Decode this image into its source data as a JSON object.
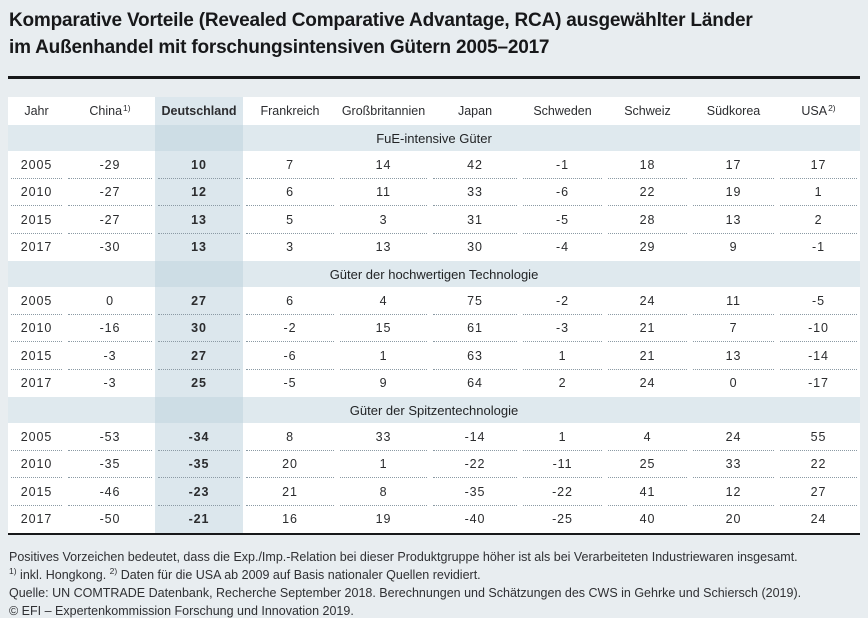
{
  "title": {
    "line1": "Komparative Vorteile (Revealed Comparative Advantage, RCA) ausgewählter Länder",
    "line2": "im Außenhandel mit forschungsintensiven Gütern 2005–2017"
  },
  "colors": {
    "page_bg": "#e8edf0",
    "section_band": "#dfe9ee",
    "deutschland_column": "#dce7ed",
    "deutschland_on_band": "#cddde5",
    "rule": "#17181a"
  },
  "table": {
    "columns": [
      {
        "key": "jahr",
        "label": "Jahr",
        "sup": ""
      },
      {
        "key": "china",
        "label": "China",
        "sup": "1)"
      },
      {
        "key": "deutschland",
        "label": "Deutschland",
        "sup": ""
      },
      {
        "key": "frankreich",
        "label": "Frankreich",
        "sup": ""
      },
      {
        "key": "grossbritannien",
        "label": "Großbritannien",
        "sup": ""
      },
      {
        "key": "japan",
        "label": "Japan",
        "sup": ""
      },
      {
        "key": "schweden",
        "label": "Schweden",
        "sup": ""
      },
      {
        "key": "schweiz",
        "label": "Schweiz",
        "sup": ""
      },
      {
        "key": "suedkorea",
        "label": "Südkorea",
        "sup": ""
      },
      {
        "key": "usa",
        "label": "USA",
        "sup": "2)"
      }
    ],
    "sections": [
      {
        "label": "FuE-intensive Güter",
        "rows": [
          {
            "year": "2005",
            "values": [
              "-29",
              "10",
              "7",
              "14",
              "42",
              "-1",
              "18",
              "17",
              "17"
            ]
          },
          {
            "year": "2010",
            "values": [
              "-27",
              "12",
              "6",
              "11",
              "33",
              "-6",
              "22",
              "19",
              "1"
            ]
          },
          {
            "year": "2015",
            "values": [
              "-27",
              "13",
              "5",
              "3",
              "31",
              "-5",
              "28",
              "13",
              "2"
            ]
          },
          {
            "year": "2017",
            "values": [
              "-30",
              "13",
              "3",
              "13",
              "30",
              "-4",
              "29",
              "9",
              "-1"
            ]
          }
        ]
      },
      {
        "label": "Güter der hochwertigen Technologie",
        "rows": [
          {
            "year": "2005",
            "values": [
              "0",
              "27",
              "6",
              "4",
              "75",
              "-2",
              "24",
              "11",
              "-5"
            ]
          },
          {
            "year": "2010",
            "values": [
              "-16",
              "30",
              "-2",
              "15",
              "61",
              "-3",
              "21",
              "7",
              "-10"
            ]
          },
          {
            "year": "2015",
            "values": [
              "-3",
              "27",
              "-6",
              "1",
              "63",
              "1",
              "21",
              "13",
              "-14"
            ]
          },
          {
            "year": "2017",
            "values": [
              "-3",
              "25",
              "-5",
              "9",
              "64",
              "2",
              "24",
              "0",
              "-17"
            ]
          }
        ]
      },
      {
        "label": "Güter der Spitzentechnologie",
        "rows": [
          {
            "year": "2005",
            "values": [
              "-53",
              "-34",
              "8",
              "33",
              "-14",
              "1",
              "4",
              "24",
              "55"
            ]
          },
          {
            "year": "2010",
            "values": [
              "-35",
              "-35",
              "20",
              "1",
              "-22",
              "-11",
              "25",
              "33",
              "22"
            ]
          },
          {
            "year": "2015",
            "values": [
              "-46",
              "-23",
              "21",
              "8",
              "-35",
              "-22",
              "41",
              "12",
              "27"
            ]
          },
          {
            "year": "2017",
            "values": [
              "-50",
              "-21",
              "16",
              "19",
              "-40",
              "-25",
              "40",
              "20",
              "24"
            ]
          }
        ]
      }
    ]
  },
  "notes": {
    "line1": "Positives Vorzeichen bedeutet, dass die Exp./Imp.-Relation bei dieser Produktgruppe höher ist als bei Verarbeiteten Industriewaren insgesamt.",
    "fn1_sup": "1)",
    "fn1_text": " inkl. Hongkong. ",
    "fn2_sup": "2)",
    "fn2_text": " Daten für die USA ab 2009 auf Basis nationaler Quellen revidiert.",
    "source": "Quelle: UN COMTRADE Datenbank, Recherche September 2018. Berechnungen und Schätzungen des CWS in Gehrke und Schiersch (2019).",
    "copyright": "© EFI – Expertenkommission Forschung und Innovation 2019."
  }
}
